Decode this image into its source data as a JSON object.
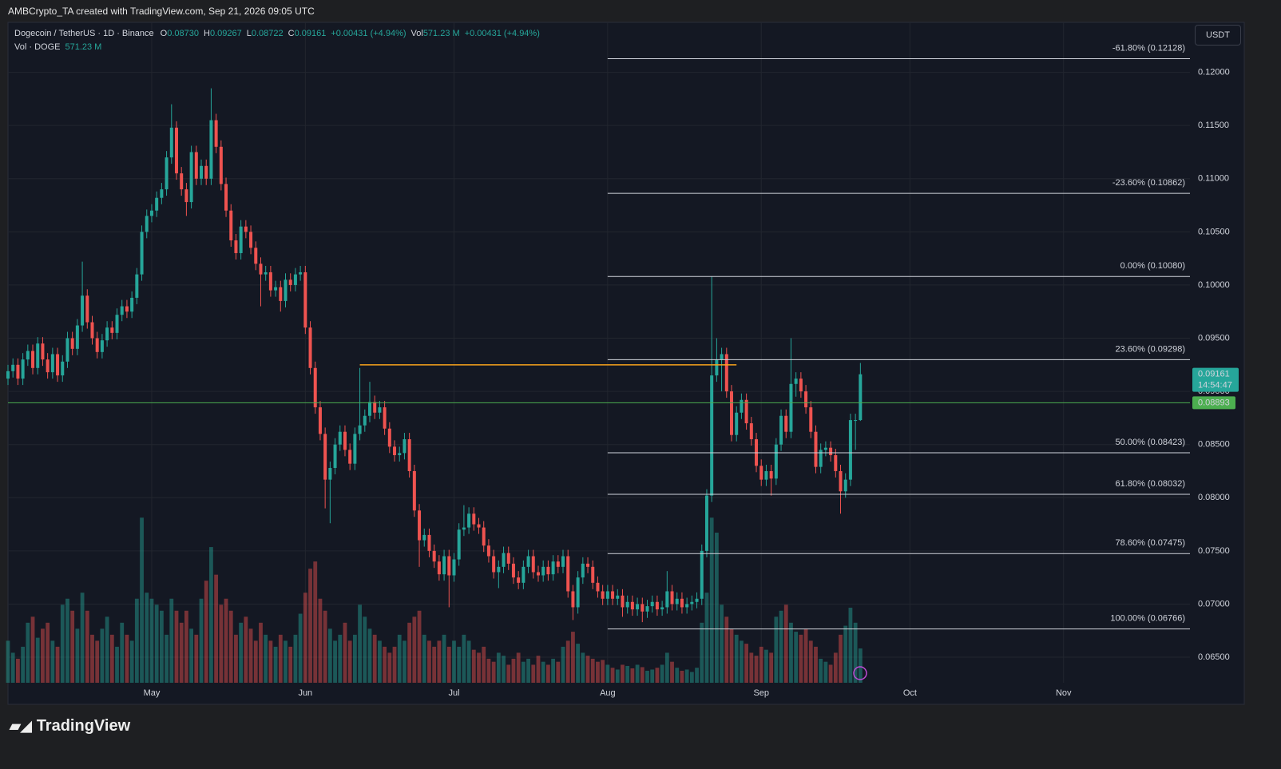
{
  "header": {
    "text": "AMBCrypto_TA created with TradingView.com, Sep 21, 2026 09:05 UTC"
  },
  "footer": {
    "brand": "TradingView"
  },
  "currency_button": "USDT",
  "chart_data": {
    "type": "candlestick",
    "legend": {
      "title": "Dogecoin / TetherUS · 1D · Binance",
      "ohlc": [
        {
          "key": "O",
          "value": "0.08730"
        },
        {
          "key": "H",
          "value": "0.09267"
        },
        {
          "key": "L",
          "value": "0.08722"
        },
        {
          "key": "C",
          "value": "0.09161"
        }
      ],
      "change": "+0.00431 (+4.94%)",
      "vol_key": "Vol",
      "vol": "571.23 M",
      "vol_change": "+0.00431 (+4.94%)",
      "vol_title": "Vol · DOGE",
      "vol_value": "571.23 M"
    },
    "open": [
      0.0912,
      0.0919,
      0.0925,
      0.0912,
      0.093,
      0.0938,
      0.0922,
      0.0945,
      0.093,
      0.0918,
      0.0935,
      0.0915,
      0.0928,
      0.095,
      0.094,
      0.0962,
      0.099,
      0.0965,
      0.095,
      0.0937,
      0.0948,
      0.096,
      0.0955,
      0.0972,
      0.098,
      0.0975,
      0.0988,
      0.101,
      0.105,
      0.1065,
      0.107,
      0.1082,
      0.109,
      0.112,
      0.1148,
      0.1105,
      0.109,
      0.1078,
      0.1125,
      0.11,
      0.1112,
      0.11,
      0.1155,
      0.113,
      0.1095,
      0.107,
      0.1042,
      0.103,
      0.1055,
      0.105,
      0.1035,
      0.102,
      0.101,
      0.1012,
      0.0995,
      0.0998,
      0.0985,
      0.1005,
      0.1,
      0.101,
      0.1012,
      0.096,
      0.0922,
      0.0885,
      0.086,
      0.0817,
      0.0828,
      0.085,
      0.0862,
      0.0845,
      0.0832,
      0.086,
      0.0868,
      0.0877,
      0.089,
      0.088,
      0.0885,
      0.0865,
      0.0848,
      0.084,
      0.0842,
      0.0855,
      0.0825,
      0.0788,
      0.076,
      0.0765,
      0.075,
      0.074,
      0.0728,
      0.0745,
      0.0727,
      0.0742,
      0.077,
      0.0772,
      0.0785,
      0.0775,
      0.0772,
      0.0755,
      0.0745,
      0.073,
      0.0735,
      0.0748,
      0.0738,
      0.0725,
      0.072,
      0.0735,
      0.0745,
      0.073,
      0.0727,
      0.0735,
      0.0728,
      0.074,
      0.0735,
      0.0745,
      0.0712,
      0.0697,
      0.0725,
      0.0738,
      0.0735,
      0.072,
      0.0712,
      0.0705,
      0.0712,
      0.0705,
      0.0708,
      0.0697,
      0.0702,
      0.0695,
      0.07,
      0.0693,
      0.0698,
      0.0702,
      0.0695,
      0.0697,
      0.0712,
      0.07,
      0.0705,
      0.0697,
      0.07,
      0.0702,
      0.0705,
      0.075,
      0.0802,
      0.0915,
      0.093,
      0.0935,
      0.09,
      0.0859,
      0.088,
      0.0892,
      0.087,
      0.0855,
      0.083,
      0.0817,
      0.0825,
      0.0818,
      0.085,
      0.0877,
      0.0862,
      0.0907,
      0.0912,
      0.09,
      0.0885,
      0.0862,
      0.0829,
      0.0845,
      0.0847,
      0.084,
      0.0825,
      0.0806,
      0.0817,
      0.0873,
      0.0873
    ],
    "high": [
      0.0925,
      0.0931,
      0.0931,
      0.0936,
      0.0944,
      0.0944,
      0.0951,
      0.0951,
      0.0936,
      0.0941,
      0.0941,
      0.0934,
      0.0956,
      0.0956,
      0.0968,
      0.1022,
      0.0996,
      0.0971,
      0.0956,
      0.0954,
      0.0966,
      0.0966,
      0.0978,
      0.0986,
      0.0986,
      0.0994,
      0.1016,
      0.1056,
      0.1071,
      0.1076,
      0.1088,
      0.1096,
      0.1126,
      0.117,
      0.1154,
      0.1111,
      0.1096,
      0.1131,
      0.1131,
      0.1118,
      0.1118,
      0.1185,
      0.1161,
      0.1136,
      0.1101,
      0.1076,
      0.1048,
      0.1061,
      0.1061,
      0.1056,
      0.1041,
      0.1026,
      0.1018,
      0.1018,
      0.1004,
      0.1004,
      0.1011,
      0.1011,
      0.1016,
      0.1018,
      0.1018,
      0.0966,
      0.0928,
      0.0891,
      0.0866,
      0.0834,
      0.0856,
      0.0868,
      0.0868,
      0.0851,
      0.0866,
      0.0922,
      0.0883,
      0.0909,
      0.0896,
      0.0891,
      0.0891,
      0.0871,
      0.0854,
      0.0848,
      0.0861,
      0.0861,
      0.0831,
      0.0794,
      0.0771,
      0.0771,
      0.0756,
      0.0746,
      0.0751,
      0.0751,
      0.0748,
      0.0776,
      0.0793,
      0.0791,
      0.0791,
      0.0781,
      0.0778,
      0.0761,
      0.0751,
      0.0741,
      0.0754,
      0.0754,
      0.0744,
      0.0731,
      0.0741,
      0.0751,
      0.0751,
      0.0736,
      0.0741,
      0.0741,
      0.0746,
      0.0746,
      0.0751,
      0.0751,
      0.0718,
      0.0731,
      0.0744,
      0.0744,
      0.0741,
      0.0726,
      0.0718,
      0.0718,
      0.0718,
      0.0714,
      0.0714,
      0.0708,
      0.0708,
      0.0706,
      0.0706,
      0.0704,
      0.0708,
      0.0708,
      0.0703,
      0.0731,
      0.0718,
      0.0711,
      0.0711,
      0.0706,
      0.0708,
      0.0711,
      0.0756,
      0.0808,
      0.1008,
      0.095,
      0.0941,
      0.0941,
      0.0906,
      0.0886,
      0.0898,
      0.0898,
      0.0876,
      0.0861,
      0.0836,
      0.0831,
      0.0831,
      0.0856,
      0.0883,
      0.0883,
      0.095,
      0.0918,
      0.0918,
      0.0906,
      0.0891,
      0.0868,
      0.0851,
      0.0853,
      0.0853,
      0.0846,
      0.0831,
      0.0823,
      0.0879,
      0.0879,
      0.09267
    ],
    "low": [
      0.0906,
      0.0913,
      0.0906,
      0.0906,
      0.0924,
      0.0916,
      0.0916,
      0.0924,
      0.0912,
      0.0912,
      0.0909,
      0.0909,
      0.0922,
      0.0934,
      0.0934,
      0.0956,
      0.0959,
      0.0944,
      0.0931,
      0.0931,
      0.0942,
      0.0949,
      0.0949,
      0.0966,
      0.0969,
      0.0969,
      0.0982,
      0.1004,
      0.1044,
      0.1059,
      0.1064,
      0.1076,
      0.1084,
      0.1114,
      0.1099,
      0.1084,
      0.1065,
      0.1072,
      0.1094,
      0.1094,
      0.1094,
      0.1094,
      0.1124,
      0.1089,
      0.1064,
      0.1036,
      0.1024,
      0.1024,
      0.1044,
      0.1029,
      0.1014,
      0.098,
      0.1004,
      0.0989,
      0.0989,
      0.0975,
      0.0979,
      0.0994,
      0.0994,
      0.1004,
      0.0954,
      0.0916,
      0.0879,
      0.0854,
      0.079,
      0.0776,
      0.0822,
      0.0844,
      0.0839,
      0.0826,
      0.0826,
      0.0854,
      0.0862,
      0.0871,
      0.0874,
      0.0874,
      0.0859,
      0.0842,
      0.0834,
      0.0834,
      0.0836,
      0.0819,
      0.0782,
      0.0735,
      0.0754,
      0.0744,
      0.0734,
      0.0722,
      0.0722,
      0.0697,
      0.0721,
      0.0736,
      0.0764,
      0.0766,
      0.0769,
      0.0766,
      0.0749,
      0.0739,
      0.0724,
      0.0715,
      0.0729,
      0.0732,
      0.0719,
      0.0714,
      0.0714,
      0.0729,
      0.0724,
      0.0721,
      0.0721,
      0.0722,
      0.0722,
      0.0729,
      0.0729,
      0.0706,
      0.0685,
      0.0691,
      0.0719,
      0.0729,
      0.0714,
      0.0706,
      0.0699,
      0.0699,
      0.0699,
      0.0699,
      0.0688,
      0.0691,
      0.0689,
      0.0689,
      0.0683,
      0.0687,
      0.0692,
      0.0689,
      0.0689,
      0.0691,
      0.0694,
      0.0694,
      0.0691,
      0.0691,
      0.0694,
      0.0696,
      0.0699,
      0.0744,
      0.0796,
      0.0909,
      0.09,
      0.0894,
      0.0853,
      0.0853,
      0.0874,
      0.0864,
      0.0849,
      0.0824,
      0.0811,
      0.0811,
      0.0802,
      0.0812,
      0.0844,
      0.0856,
      0.0856,
      0.0895,
      0.0894,
      0.0879,
      0.0856,
      0.0823,
      0.0823,
      0.0839,
      0.0834,
      0.0819,
      0.0785,
      0.08,
      0.0811,
      0.0845,
      0.08722
    ],
    "close": [
      0.0919,
      0.0925,
      0.0912,
      0.093,
      0.0938,
      0.0922,
      0.0945,
      0.093,
      0.0918,
      0.0935,
      0.0915,
      0.0928,
      0.095,
      0.094,
      0.0962,
      0.099,
      0.0965,
      0.095,
      0.0937,
      0.0948,
      0.096,
      0.0955,
      0.0972,
      0.098,
      0.0975,
      0.0988,
      0.101,
      0.105,
      0.1065,
      0.107,
      0.1082,
      0.109,
      0.112,
      0.1148,
      0.1105,
      0.109,
      0.1078,
      0.1125,
      0.11,
      0.1112,
      0.11,
      0.1155,
      0.113,
      0.1095,
      0.107,
      0.1042,
      0.103,
      0.1055,
      0.105,
      0.1035,
      0.102,
      0.101,
      0.1012,
      0.0995,
      0.0998,
      0.0985,
      0.1005,
      0.1,
      0.101,
      0.1012,
      0.096,
      0.0922,
      0.0885,
      0.086,
      0.0817,
      0.0828,
      0.085,
      0.0862,
      0.0845,
      0.0832,
      0.086,
      0.0868,
      0.0877,
      0.089,
      0.088,
      0.0885,
      0.0865,
      0.0848,
      0.084,
      0.0842,
      0.0855,
      0.0825,
      0.0788,
      0.076,
      0.0765,
      0.075,
      0.074,
      0.0728,
      0.0745,
      0.0727,
      0.0742,
      0.077,
      0.0772,
      0.0785,
      0.0775,
      0.0772,
      0.0755,
      0.0745,
      0.073,
      0.0735,
      0.0748,
      0.0738,
      0.0725,
      0.072,
      0.0735,
      0.0745,
      0.073,
      0.0727,
      0.0735,
      0.0728,
      0.074,
      0.0735,
      0.0745,
      0.0712,
      0.0697,
      0.0725,
      0.0738,
      0.0735,
      0.072,
      0.0712,
      0.0705,
      0.0712,
      0.0705,
      0.0708,
      0.0697,
      0.0702,
      0.0695,
      0.07,
      0.0693,
      0.0698,
      0.0702,
      0.0695,
      0.0697,
      0.0712,
      0.07,
      0.0705,
      0.0697,
      0.07,
      0.0702,
      0.0705,
      0.075,
      0.0802,
      0.0915,
      0.093,
      0.0935,
      0.09,
      0.0859,
      0.088,
      0.0892,
      0.087,
      0.0855,
      0.083,
      0.0817,
      0.0825,
      0.0818,
      0.085,
      0.0877,
      0.0862,
      0.0907,
      0.0912,
      0.09,
      0.0885,
      0.0862,
      0.0829,
      0.0845,
      0.0847,
      0.084,
      0.0825,
      0.0806,
      0.0817,
      0.0873,
      0.0873,
      0.09161
    ],
    "volume": [
      700,
      500,
      400,
      600,
      1000,
      1100,
      750,
      900,
      1000,
      700,
      600,
      1300,
      1400,
      1200,
      900,
      1500,
      1200,
      800,
      700,
      900,
      1100,
      800,
      600,
      1000,
      800,
      700,
      1400,
      2750,
      1500,
      1400,
      1300,
      1200,
      800,
      1400,
      1200,
      1000,
      1200,
      900,
      800,
      1400,
      1700,
      2260,
      1800,
      1300,
      1400,
      1200,
      800,
      1000,
      1100,
      900,
      700,
      1000,
      800,
      700,
      600,
      800,
      700,
      600,
      800,
      1150,
      1500,
      1900,
      2020,
      1400,
      1200,
      900,
      700,
      800,
      1000,
      700,
      800,
      1300,
      1100,
      900,
      800,
      700,
      600,
      500,
      600,
      800,
      700,
      1000,
      1100,
      1200,
      800,
      700,
      600,
      700,
      800,
      600,
      700,
      600,
      800,
      700,
      550,
      500,
      600,
      400,
      350,
      500,
      450,
      300,
      400,
      500,
      350,
      400,
      300,
      450,
      350,
      300,
      400,
      350,
      600,
      700,
      850,
      650,
      500,
      450,
      400,
      350,
      380,
      300,
      250,
      220,
      300,
      280,
      240,
      300,
      260,
      200,
      220,
      250,
      300,
      500,
      350,
      250,
      200,
      220,
      180,
      250,
      1000,
      1500,
      2750,
      2500,
      1300,
      1100,
      900,
      800,
      700,
      650,
      500,
      450,
      600,
      550,
      500,
      1100,
      1200,
      1300,
      1000,
      850,
      800,
      900,
      700,
      600,
      400,
      350,
      300,
      500,
      800,
      950,
      1250,
      1000,
      571.23
    ],
    "volume_ylim": [
      0,
      11000
    ],
    "xlim": [
      0,
      238.5
    ],
    "xticks": [
      {
        "value": 29,
        "label": "May"
      },
      {
        "value": 60,
        "label": "Jun"
      },
      {
        "value": 90,
        "label": "Jul"
      },
      {
        "value": 121,
        "label": "Aug"
      },
      {
        "value": 152,
        "label": "Sep"
      },
      {
        "value": 182,
        "label": "Oct"
      },
      {
        "value": 213,
        "label": "Nov"
      }
    ],
    "ylim": [
      0.0626,
      0.1247
    ],
    "yticks": [
      {
        "value": 0.065,
        "label": "0.06500"
      },
      {
        "value": 0.07,
        "label": "0.07000"
      },
      {
        "value": 0.075,
        "label": "0.07500"
      },
      {
        "value": 0.08,
        "label": "0.08000"
      },
      {
        "value": 0.085,
        "label": "0.08500"
      },
      {
        "value": 0.09,
        "label": "0.09000"
      },
      {
        "value": 0.095,
        "label": "0.09500"
      },
      {
        "value": 0.1,
        "label": "0.10000"
      },
      {
        "value": 0.105,
        "label": "0.10500"
      },
      {
        "value": 0.11,
        "label": "0.11000"
      },
      {
        "value": 0.115,
        "label": "0.11500"
      },
      {
        "value": 0.12,
        "label": "0.12000"
      }
    ],
    "grid": true,
    "up_color": "#26a69a",
    "down_color": "#ef5350",
    "fib": {
      "start": 121,
      "color": "#d1d4dc",
      "levels": [
        {
          "value": 0.12128,
          "label": "-61.80% (0.12128)"
        },
        {
          "value": 0.10862,
          "label": "-23.60% (0.10862)"
        },
        {
          "value": 0.1008,
          "label": "0.00% (0.10080)"
        },
        {
          "value": 0.09298,
          "label": "23.60% (0.09298)"
        },
        {
          "value": 0.08423,
          "label": "50.00% (0.08423)"
        },
        {
          "value": 0.08032,
          "label": "61.80% (0.08032)"
        },
        {
          "value": 0.07475,
          "label": "78.60% (0.07475)"
        },
        {
          "value": 0.06766,
          "label": "100.00% (0.06766)"
        }
      ]
    },
    "resistance": {
      "value": 0.0925,
      "x": [
        71,
        147
      ],
      "color": "#f7a21b"
    },
    "support": {
      "value": 0.08893,
      "color": "#4caf50"
    },
    "last_price": {
      "value": 0.09161,
      "countdown": "14:54:47"
    }
  }
}
